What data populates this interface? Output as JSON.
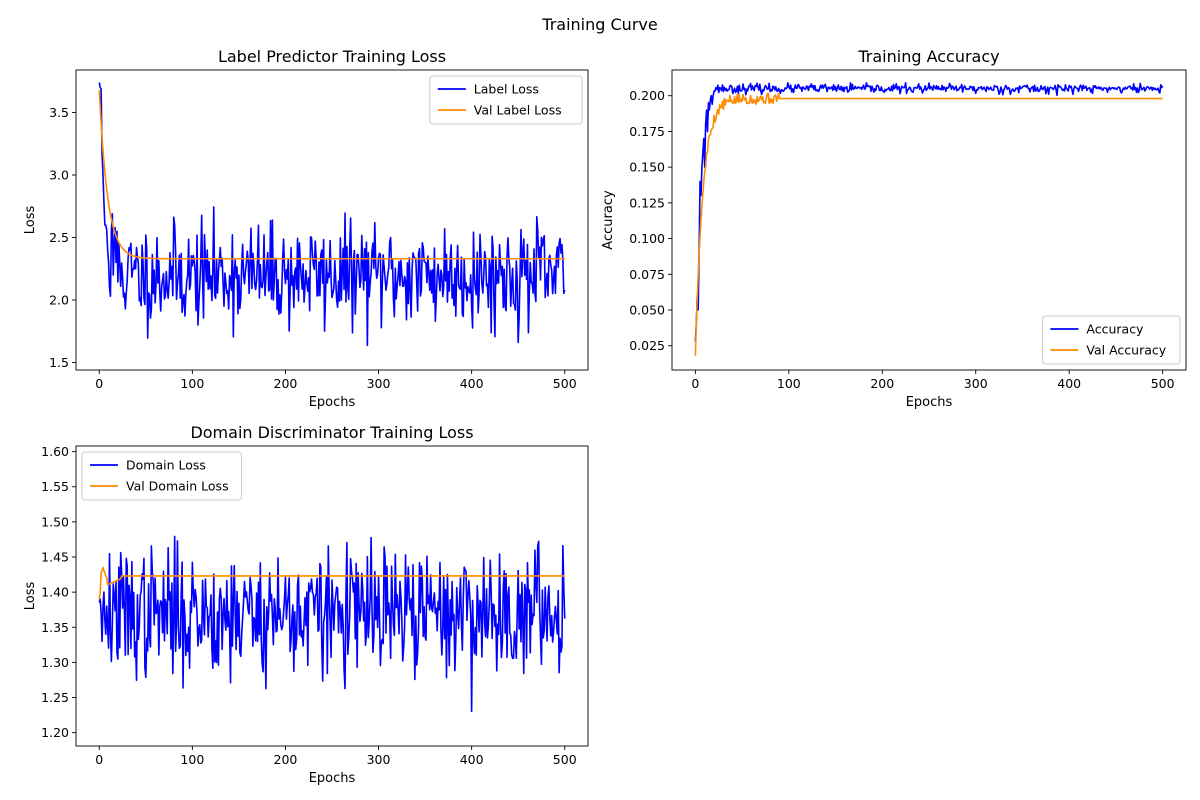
{
  "figure": {
    "title": "Training Curve"
  },
  "colors": {
    "train": "#0000ff",
    "val": "#ff8c00"
  },
  "chart_data": [
    {
      "id": "label_loss",
      "type": "line",
      "title": "Label Predictor Training Loss",
      "xlabel": "Epochs",
      "ylabel": "Loss",
      "xlim": [
        -25,
        525
      ],
      "ylim": [
        1.44,
        3.84
      ],
      "xticks": [
        0,
        100,
        200,
        300,
        400,
        500
      ],
      "yticks": [
        1.5,
        2.0,
        2.5,
        3.0,
        3.5
      ],
      "ytick_format": 1,
      "legend": {
        "placement": "top-right"
      },
      "grid": false,
      "noisy_series": {
        "name": "Label Loss",
        "color": "#0000ff",
        "epochs": 500,
        "initial": [
          3.74,
          3.7,
          3.69,
          3.17,
          3.0,
          2.78,
          2.6,
          2.6,
          2.56,
          2.4,
          2.3,
          2.1,
          2.03,
          2.55,
          2.69,
          2.2,
          2.45,
          2.58,
          2.3,
          2.55
        ],
        "level": 2.2,
        "spread": 0.2,
        "min": 1.55,
        "max": 2.85,
        "seed": 11
      },
      "smooth_series": {
        "name": "Val Label Loss",
        "color": "#ff8c00",
        "start": 3.68,
        "plateau": 2.33,
        "tau": 9
      }
    },
    {
      "id": "accuracy",
      "type": "line",
      "title": "Training Accuracy",
      "xlabel": "Epochs",
      "ylabel": "Accuracy",
      "xlim": [
        -25,
        525
      ],
      "ylim": [
        0.008,
        0.218
      ],
      "xticks": [
        0,
        100,
        200,
        300,
        400,
        500
      ],
      "yticks": [
        0.025,
        0.05,
        0.075,
        0.1,
        0.125,
        0.15,
        0.175,
        0.2
      ],
      "ytick_format": 3,
      "legend": {
        "placement": "bottom-right"
      },
      "grid": false,
      "noisy_series": {
        "name": "Accuracy",
        "color": "#0000ff",
        "epochs": 500,
        "initial": [
          0.028,
          0.04,
          0.06,
          0.05,
          0.09,
          0.14,
          0.13,
          0.15,
          0.16,
          0.17,
          0.15,
          0.18,
          0.19,
          0.175,
          0.195,
          0.19,
          0.197,
          0.2,
          0.194,
          0.2
        ],
        "level": 0.205,
        "spread": 0.0016,
        "min": 0.2,
        "max": 0.209,
        "seed": 23
      },
      "smooth_series": {
        "name": "Val Accuracy",
        "color": "#ff8c00",
        "start": 0.018,
        "plateau": 0.198,
        "tau": 8,
        "jitter": 0.004,
        "jitter_until": 90,
        "seed": 5
      }
    },
    {
      "id": "domain_loss",
      "type": "line",
      "title": "Domain Discriminator Training Loss",
      "xlabel": "Epochs",
      "ylabel": "Loss",
      "xlim": [
        -25,
        525
      ],
      "ylim": [
        1.181,
        1.608
      ],
      "xticks": [
        0,
        100,
        200,
        300,
        400,
        500
      ],
      "yticks": [
        1.2,
        1.25,
        1.3,
        1.35,
        1.4,
        1.45,
        1.5,
        1.55,
        1.6
      ],
      "ytick_format": 2,
      "legend": {
        "placement": "top-left"
      },
      "grid": false,
      "noisy_series": {
        "name": "Domain Loss",
        "color": "#0000ff",
        "epochs": 500,
        "initial": [
          1.385,
          1.39,
          1.37,
          1.33,
          1.38,
          1.4,
          1.36,
          1.34,
          1.38,
          1.35
        ],
        "level": 1.37,
        "spread": 0.045,
        "min": 1.2,
        "max": 1.588,
        "seed": 37
      },
      "smooth_series": {
        "name": "Val Domain Loss",
        "color": "#ff8c00",
        "start": 1.39,
        "plateau": 1.423,
        "tau": 3,
        "bump": {
          "at": 4,
          "value": 1.435
        },
        "dip": {
          "from": 8,
          "to": 24,
          "value": 1.41
        }
      }
    }
  ]
}
